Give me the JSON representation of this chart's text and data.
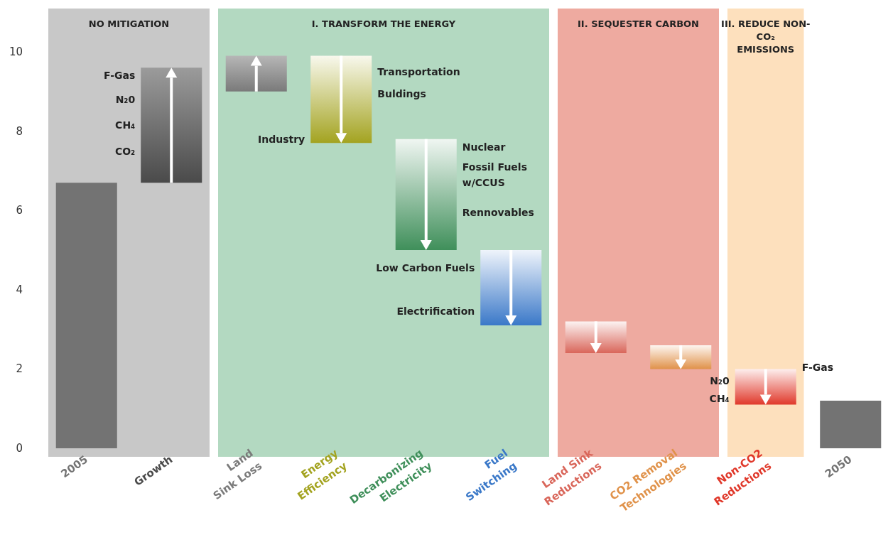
{
  "chart_data": {
    "type": "bar",
    "categories": [
      "2005",
      "Growth",
      "Land\nSink Loss",
      "Energy\nEfficiency",
      "Decarbonizing\nElectricity",
      "Fuel\nSwitching",
      "Land Sink\nReductions",
      "CO2 Removal\nTechnologies",
      "Non-CO2\nReductions",
      "2050"
    ],
    "base": [
      0,
      6.7,
      9.0,
      9.9,
      7.8,
      5.0,
      3.2,
      2.6,
      2.0,
      0
    ],
    "values": [
      6.7,
      2.9,
      0.9,
      -2.2,
      -2.8,
      -1.9,
      -0.8,
      -0.6,
      -0.9,
      1.2
    ],
    "colors": [
      "#737373",
      "#4a4a4a",
      "#7a7a7a",
      "#a3a320",
      "#3f8f5a",
      "#3a78c8",
      "#d9665a",
      "#e0924a",
      "#e0382a",
      "#737373"
    ],
    "ylim": [
      0,
      10
    ],
    "yticks": [
      0,
      2,
      4,
      6,
      8,
      10
    ],
    "bands": [
      {
        "axis": "x",
        "from": "2005",
        "to": "Growth",
        "label": "NO MITIGATION",
        "color": "#c8c8c8"
      },
      {
        "axis": "x",
        "from": "Land\nSink Loss",
        "to": "Fuel\nSwitching",
        "label": "I. TRANSFORM THE ENERGY",
        "color": "#b3d9c1"
      },
      {
        "axis": "x",
        "from": "Land Sink\nReductions",
        "to": "CO2 Removal\nTechnologies",
        "label": "II. SEQUESTER CARBON",
        "color": "#eeaaa0"
      },
      {
        "axis": "x",
        "from": "Non-CO2\nReductions",
        "to": "Non-CO2\nReductions",
        "label": "III. REDUCE NON-\nCO₂\nEMISSIONS",
        "color": "#fde0bd"
      }
    ],
    "annotations": [
      "F-Gas",
      "N₂0",
      "CH₄",
      "CO₂",
      "Transportation",
      "Buldings",
      "Industry",
      "Nuclear",
      "Fossil Fuels\nw/CCUS",
      "Rennovables",
      "Low Carbon Fuels",
      "Electrification",
      "N₂0",
      "CH₄",
      "F-Gas"
    ]
  }
}
